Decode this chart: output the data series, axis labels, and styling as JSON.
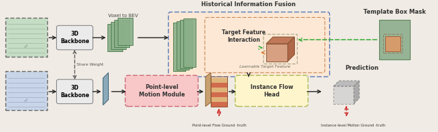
{
  "bg_color": "#f0ebe4",
  "title_hist": "Historical Information Fusion",
  "title_template": "Template Box Mask",
  "title_pred": "Prediction",
  "label_voxel": "Voxel to BEV",
  "label_share": "Share Weight",
  "label_3d_backbone": "3D\nBackbone",
  "label_target_feature": "Target Feature\nInteraction",
  "label_learnable": "Learnable Target Feature",
  "label_point_level": "Point-level\nMotion Module",
  "label_instance_flow": "Instance Flow\nHead",
  "label_point_gt": "Point-level Flow Ground -truth",
  "label_instance_gt": "Instance-level Motion Ground -truth",
  "hist_box_edge": "#5577bb",
  "hist_inner_fill": "#fce8d5",
  "hist_inner_edge": "#cc8855",
  "point_module_fill": "#f8c8c8",
  "point_module_edge": "#cc6677",
  "instance_head_fill": "#fef5cc",
  "instance_head_edge": "#aabb55",
  "backbone_fill": "#ebebeb",
  "backbone_edge": "#888888",
  "green_plane": "#8ab08a",
  "green_plane_edge": "#4a7a4a",
  "blue_plane": "#8aaabb",
  "blue_plane_edge": "#4a6a7a",
  "template_green": "#88aa88",
  "template_green_edge": "#4a7a4a",
  "box3d_fill": "#d4987a",
  "box3d_top": "#c07858",
  "box3d_right": "#b06848",
  "box3d_edge": "#885533",
  "flow_stripe1": "#cc5533",
  "flow_stripe2": "#ddaa66",
  "flow_board": "#c8a070",
  "pred_fill": "#cccccc",
  "pred_edge": "#888888",
  "arrow_color": "#222222",
  "green_arrow": "#33aa33",
  "orange_arrow": "#dd7722",
  "red_arrow": "#cc2222",
  "pc_top_fill": "#c5dcc5",
  "pc_bot_fill": "#c8d5e8",
  "pc_line_top": "#88aa88",
  "pc_line_bot": "#8899bb"
}
